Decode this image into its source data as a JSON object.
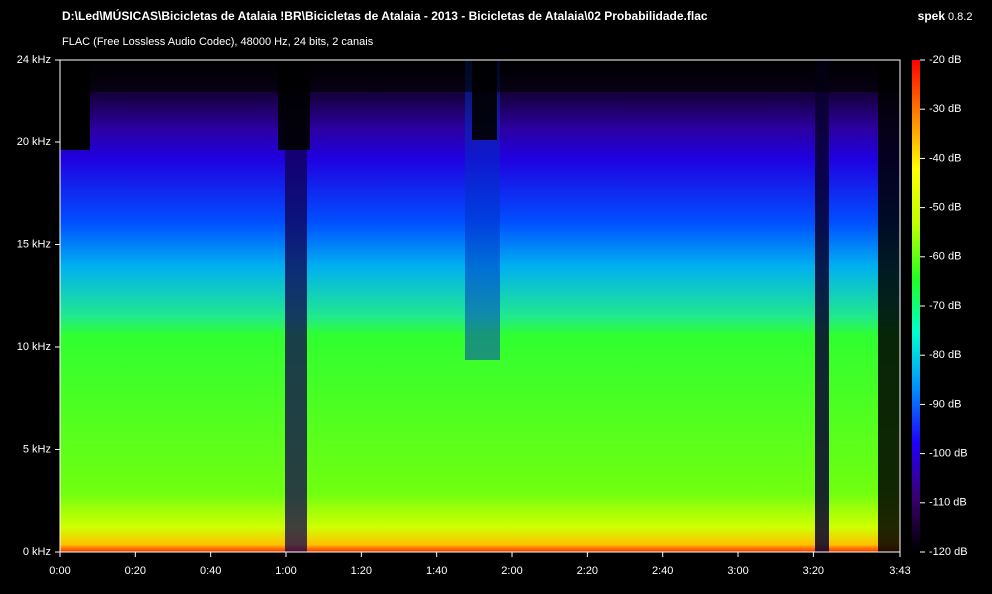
{
  "chart_data": {
    "type": "spectrogram",
    "title": "D:\\Led\\MÚSICAS\\Bicicletas de Atalaia !BR\\Bicicletas de Atalaia - 2013 - Bicicletas de Atalaia\\02 Probabilidade.flac",
    "subtitle": "FLAC (Free Lossless Audio Codec), 48000 Hz, 24 bits, 2 canais",
    "app_name": "spek",
    "app_version": "0.8.2",
    "xlim": [
      0,
      223
    ],
    "xticks": [
      {
        "value": 0,
        "label": "0:00"
      },
      {
        "value": 20,
        "label": "0:20"
      },
      {
        "value": 40,
        "label": "0:40"
      },
      {
        "value": 60,
        "label": "1:00"
      },
      {
        "value": 80,
        "label": "1:20"
      },
      {
        "value": 100,
        "label": "1:40"
      },
      {
        "value": 120,
        "label": "2:00"
      },
      {
        "value": 140,
        "label": "2:20"
      },
      {
        "value": 160,
        "label": "2:40"
      },
      {
        "value": 180,
        "label": "3:00"
      },
      {
        "value": 200,
        "label": "3:20"
      },
      {
        "value": 223,
        "label": "3:43"
      }
    ],
    "ylim": [
      0,
      24
    ],
    "yticks": [
      {
        "value": 0,
        "label": "0 kHz"
      },
      {
        "value": 5,
        "label": "5 kHz"
      },
      {
        "value": 10,
        "label": "10 kHz"
      },
      {
        "value": 15,
        "label": "15 kHz"
      },
      {
        "value": 20,
        "label": "20 kHz"
      },
      {
        "value": 24,
        "label": "24 kHz"
      }
    ],
    "clim": [
      -120,
      -20
    ],
    "cticks": [
      {
        "value": -20,
        "label": "-20 dB"
      },
      {
        "value": -30,
        "label": "-30 dB"
      },
      {
        "value": -40,
        "label": "-40 dB"
      },
      {
        "value": -50,
        "label": "-50 dB"
      },
      {
        "value": -60,
        "label": "-60 dB"
      },
      {
        "value": -70,
        "label": "-70 dB"
      },
      {
        "value": -80,
        "label": "-80 dB"
      },
      {
        "value": -90,
        "label": "-90 dB"
      },
      {
        "value": -100,
        "label": "-100 dB"
      },
      {
        "value": -110,
        "label": "-110 dB"
      },
      {
        "value": -120,
        "label": "-120 dB"
      }
    ],
    "colormap": [
      "#000000",
      "#3a0070",
      "#2000ff",
      "#0090ff",
      "#00ffd0",
      "#20ff20",
      "#c0ff00",
      "#ffff00",
      "#ff8000",
      "#ff0000"
    ]
  }
}
